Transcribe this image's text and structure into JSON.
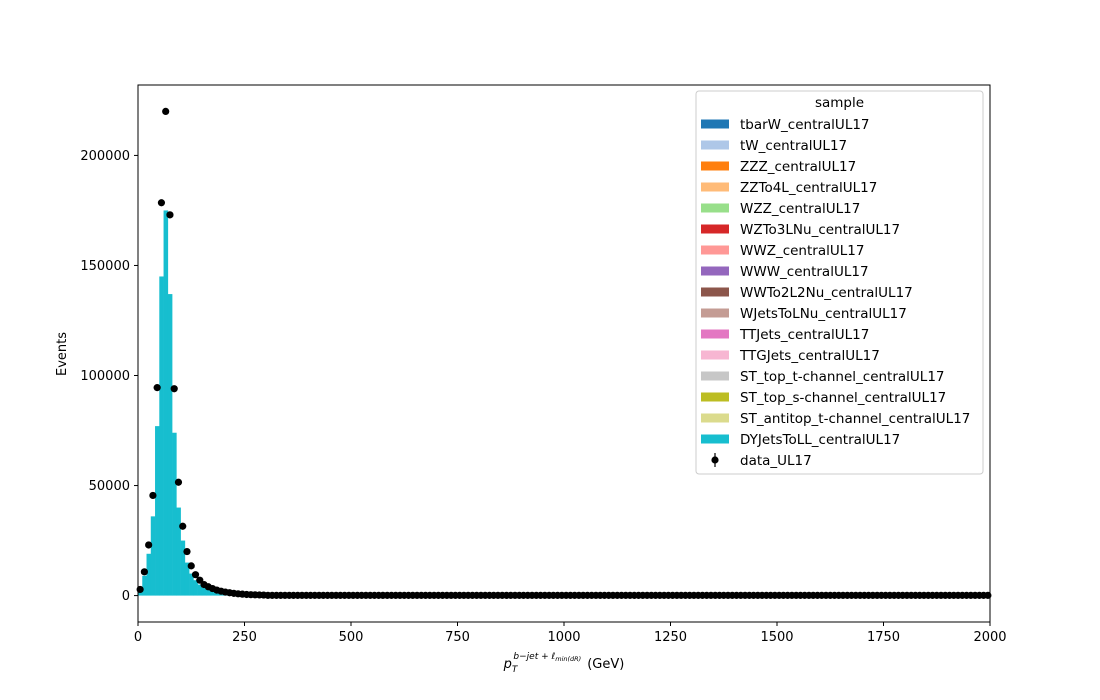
{
  "chart_data": {
    "type": "bar",
    "title": "",
    "xlabel_main": "p",
    "xlabel_sub": "T",
    "xlabel_sup": "b−jet + ℓ",
    "xlabel_sup_sub": "min(dR)",
    "xlabel_unit": "(GeV)",
    "ylabel": "Events",
    "xlim": [
      0,
      2000
    ],
    "ylim": [
      -12000,
      232000
    ],
    "xticks": [
      0,
      250,
      500,
      750,
      1000,
      1250,
      1500,
      1750,
      2000
    ],
    "xtick_labels": [
      "0",
      "250",
      "500",
      "750",
      "1000",
      "1250",
      "1500",
      "1750",
      "2000"
    ],
    "yticks": [
      0,
      50000,
      100000,
      150000,
      200000
    ],
    "ytick_labels": [
      "0",
      "50000",
      "100000",
      "150000",
      "200000"
    ],
    "bin_width": 10,
    "legend": {
      "title": "sample",
      "placement": "upper right",
      "entries": [
        {
          "label": "tbarW_centralUL17",
          "color": "#1f77b4"
        },
        {
          "label": "tW_centralUL17",
          "color": "#aec7e8"
        },
        {
          "label": "ZZZ_centralUL17",
          "color": "#ff7f0e"
        },
        {
          "label": "ZZTo4L_centralUL17",
          "color": "#ffbb78"
        },
        {
          "label": "WZZ_centralUL17",
          "color": "#98df8a"
        },
        {
          "label": "WZTo3LNu_centralUL17",
          "color": "#d62728"
        },
        {
          "label": "WWZ_centralUL17",
          "color": "#ff9896"
        },
        {
          "label": "WWW_centralUL17",
          "color": "#9467bd"
        },
        {
          "label": "WWTo2L2Nu_centralUL17",
          "color": "#8c564b"
        },
        {
          "label": "WJetsToLNu_centralUL17",
          "color": "#c49c94"
        },
        {
          "label": "TTJets_centralUL17",
          "color": "#e377c2"
        },
        {
          "label": "TTGJets_centralUL17",
          "color": "#f7b6d2"
        },
        {
          "label": "ST_top_t-channel_centralUL17",
          "color": "#c7c7c7"
        },
        {
          "label": "ST_top_s-channel_centralUL17",
          "color": "#bcbd22"
        },
        {
          "label": "ST_antitop_t-channel_centralUL17",
          "color": "#dbdb8d"
        },
        {
          "label": "DYJetsToLL_centralUL17",
          "color": "#17becf"
        }
      ],
      "data_label": "data_UL17"
    },
    "series": [
      {
        "name": "DYJetsToLL_centralUL17",
        "color": "#17becf",
        "x": [
          0,
          10,
          20,
          30,
          40,
          50,
          60,
          70,
          80,
          90,
          100,
          110,
          120,
          130,
          140,
          150,
          160,
          170,
          180,
          190,
          200,
          210,
          220,
          230,
          240,
          250,
          260,
          270,
          280,
          290
        ],
        "values": [
          3000,
          9000,
          19000,
          36000,
          77000,
          145000,
          175000,
          137000,
          74000,
          40000,
          25000,
          15000,
          10000,
          7000,
          5000,
          3500,
          2800,
          2000,
          1500,
          1200,
          900,
          700,
          550,
          400,
          300,
          250,
          200,
          150,
          100,
          80
        ]
      }
    ],
    "data_points": {
      "name": "data_UL17",
      "x": [
        5,
        15,
        25,
        35,
        45,
        55,
        65,
        75,
        85,
        95,
        105,
        115,
        125,
        135,
        145,
        155,
        165,
        175,
        185,
        195,
        205,
        215,
        225,
        235,
        245,
        255,
        265,
        275,
        285,
        295
      ],
      "values": [
        2800,
        10800,
        23000,
        45500,
        94500,
        178500,
        220000,
        173000,
        94000,
        51500,
        31500,
        20000,
        13500,
        9500,
        7000,
        5000,
        4000,
        3200,
        2500,
        2000,
        1600,
        1300,
        1000,
        800,
        650,
        500,
        400,
        350,
        300,
        250
      ],
      "tail_from": 305,
      "tail_to": 1995,
      "tail_step": 10,
      "tail_value": 100
    }
  }
}
